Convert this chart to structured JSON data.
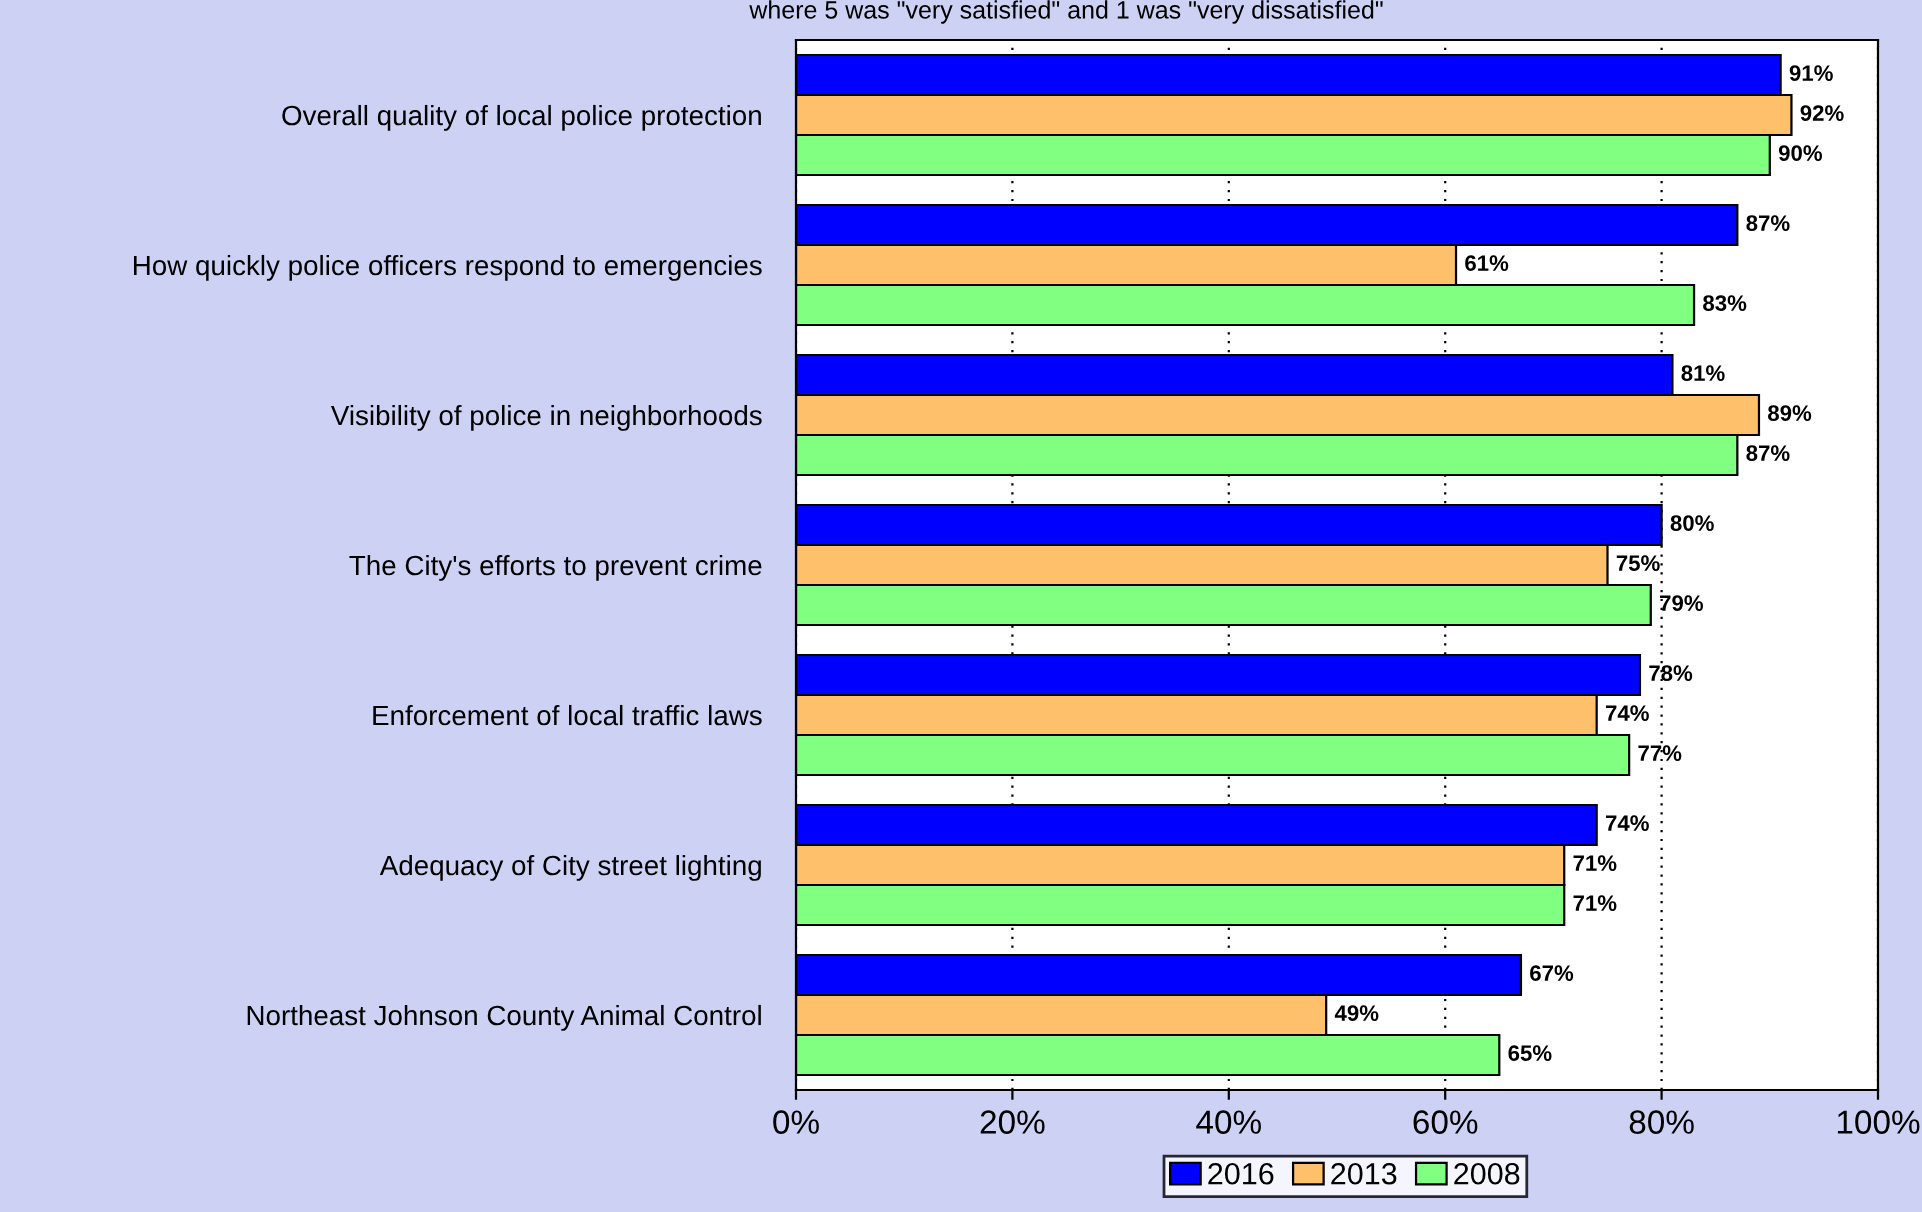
{
  "chart_data": {
    "type": "bar",
    "orientation": "horizontal",
    "subtitle": "where 5 was \"very satisfied\" and 1 was \"very dissatisfied\"",
    "categories": [
      "Overall quality of local police protection",
      "How quickly police officers respond to emergencies",
      "Visibility of police in neighborhoods",
      "The City's efforts to prevent crime",
      "Enforcement of local traffic laws",
      "Adequacy of City street lighting",
      "Northeast Johnson County Animal Control"
    ],
    "series": [
      {
        "name": "2016",
        "color": "#0000ff",
        "values": [
          91,
          87,
          81,
          80,
          78,
          74,
          67
        ],
        "value_labels": [
          "91%",
          "87%",
          "81%",
          "80%",
          "78%",
          "74%",
          "67%"
        ]
      },
      {
        "name": "2013",
        "color": "#ffc06b",
        "values": [
          92,
          61,
          89,
          75,
          74,
          71,
          49
        ],
        "value_labels": [
          "92%",
          "61%",
          "89%",
          "75%",
          "74%",
          "71%",
          "49%"
        ]
      },
      {
        "name": "2008",
        "color": "#80ff80",
        "values": [
          90,
          83,
          87,
          79,
          77,
          71,
          65
        ],
        "value_labels": [
          "90%",
          "83%",
          "87%",
          "79%",
          "77%",
          "71%",
          "65%"
        ]
      }
    ],
    "xlim": [
      0,
      100
    ],
    "xticks": [
      {
        "value": 0,
        "label": "0%"
      },
      {
        "value": 20,
        "label": "20%"
      },
      {
        "value": 40,
        "label": "40%"
      },
      {
        "value": 60,
        "label": "60%"
      },
      {
        "value": 80,
        "label": "80%"
      },
      {
        "value": 100,
        "label": "100%"
      }
    ],
    "grid": "x",
    "legend": "bottom right"
  }
}
